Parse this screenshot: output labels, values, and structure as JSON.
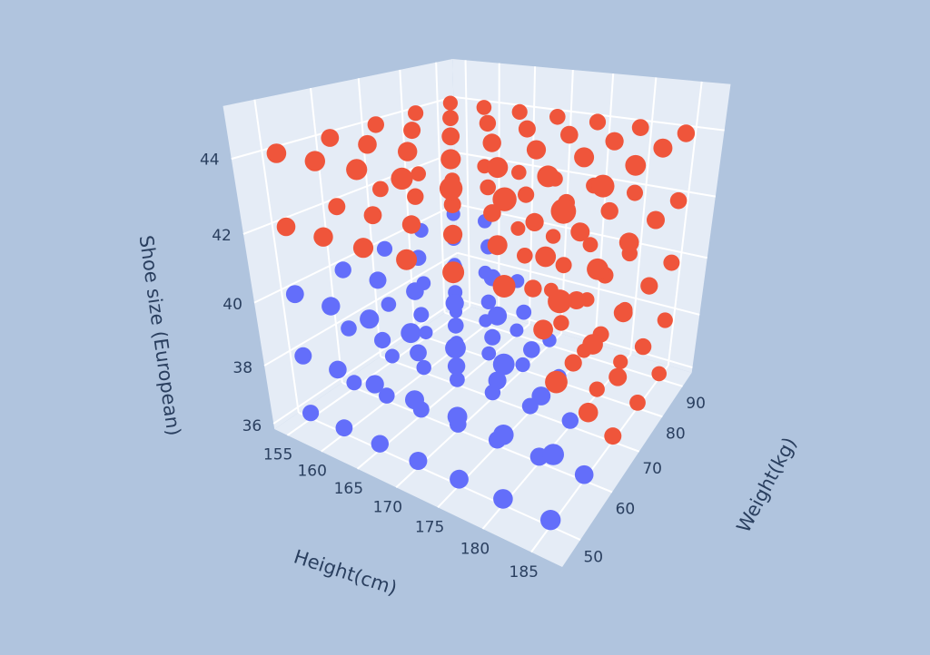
{
  "chart_data": {
    "type": "scatter3d",
    "x_label": "Height(cm)",
    "y_label": "Weight(kg)",
    "z_label": "Shoe size (European)",
    "xlim": [
      153,
      188
    ],
    "ylim": [
      45,
      95
    ],
    "zlim": [
      35.8,
      45.3
    ],
    "xticks": [
      155,
      160,
      165,
      170,
      175,
      180,
      185
    ],
    "yticks": [
      50,
      60,
      70,
      80,
      90
    ],
    "zticks": [
      36,
      38,
      40,
      42,
      44
    ],
    "series": [
      {
        "color": "#636efa",
        "x": [
          155,
          160,
          165,
          170,
          175,
          180,
          185,
          155,
          160,
          165,
          170,
          175,
          180,
          185,
          155,
          160,
          165,
          170,
          175,
          180,
          155,
          160,
          165,
          170,
          175,
          155,
          160,
          165,
          170,
          155,
          160,
          165,
          170,
          175,
          180,
          185,
          155,
          160,
          165,
          170,
          175,
          180,
          155,
          160,
          165,
          170,
          175,
          155,
          160,
          165,
          170,
          155,
          160,
          165,
          155,
          160,
          165,
          170,
          175,
          180,
          155,
          160,
          165,
          170,
          175,
          155,
          160,
          165,
          170,
          155,
          160,
          165,
          155,
          160
        ],
        "y": [
          50,
          50,
          50,
          50,
          50,
          50,
          50,
          60,
          60,
          60,
          60,
          60,
          60,
          60,
          70,
          70,
          70,
          70,
          70,
          70,
          80,
          80,
          80,
          80,
          80,
          90,
          90,
          90,
          90,
          50,
          50,
          50,
          50,
          50,
          50,
          50,
          60,
          60,
          60,
          60,
          60,
          60,
          70,
          70,
          70,
          70,
          70,
          80,
          80,
          80,
          80,
          90,
          90,
          90,
          50,
          50,
          50,
          50,
          50,
          50,
          60,
          60,
          60,
          60,
          60,
          70,
          70,
          70,
          70,
          80,
          80,
          80,
          90,
          90
        ],
        "z": [
          36,
          36,
          36,
          36,
          36,
          36,
          36,
          36,
          36,
          36,
          36,
          36,
          36,
          36,
          36,
          36,
          36,
          36,
          36,
          36,
          36,
          36,
          36,
          36,
          36,
          36,
          36,
          36,
          36,
          38,
          38,
          38,
          38,
          38,
          38,
          38,
          38,
          38,
          38,
          38,
          38,
          38,
          38,
          38,
          38,
          38,
          38,
          38,
          38,
          38,
          38,
          38,
          38,
          38,
          40,
          40,
          40,
          40,
          40,
          40,
          40,
          40,
          40,
          40,
          40,
          40,
          40,
          40,
          40,
          40,
          40,
          40,
          40,
          40
        ]
      },
      {
        "color": "#ef553b",
        "x": [
          185,
          180,
          185,
          175,
          180,
          185,
          185,
          180,
          185,
          175,
          180,
          185,
          170,
          175,
          180,
          185,
          185,
          180,
          185,
          175,
          180,
          185,
          170,
          175,
          180,
          185,
          165,
          170,
          175,
          180,
          185,
          155,
          160,
          165,
          170,
          175,
          180,
          185,
          155,
          160,
          165,
          170,
          175,
          180,
          185,
          155,
          160,
          165,
          170,
          175,
          180,
          185,
          155,
          160,
          165,
          170,
          175,
          180,
          185,
          155,
          160,
          165,
          170,
          175,
          180,
          185,
          155,
          160,
          165,
          170,
          175,
          180,
          185,
          155,
          160,
          165,
          170,
          175,
          180,
          185,
          155,
          160,
          165,
          170,
          175,
          180,
          185,
          155,
          160,
          165,
          170,
          175,
          180,
          185,
          155,
          160,
          165,
          170,
          175,
          180,
          185
        ],
        "y": [
          70,
          80,
          80,
          90,
          90,
          90,
          60,
          70,
          70,
          80,
          80,
          80,
          90,
          90,
          90,
          90,
          50,
          60,
          60,
          70,
          70,
          70,
          80,
          80,
          80,
          80,
          90,
          90,
          90,
          90,
          90,
          50,
          50,
          50,
          50,
          50,
          50,
          50,
          60,
          60,
          60,
          60,
          60,
          60,
          60,
          70,
          70,
          70,
          70,
          70,
          70,
          70,
          80,
          80,
          80,
          80,
          80,
          80,
          80,
          90,
          90,
          90,
          90,
          90,
          90,
          90,
          50,
          50,
          50,
          50,
          50,
          50,
          50,
          60,
          60,
          60,
          60,
          60,
          60,
          60,
          70,
          70,
          70,
          70,
          70,
          70,
          70,
          80,
          80,
          80,
          80,
          80,
          80,
          80,
          90,
          90,
          90,
          90,
          90,
          90,
          90
        ],
        "z": [
          36,
          36,
          36,
          36,
          36,
          36,
          38,
          38,
          38,
          38,
          38,
          38,
          38,
          38,
          38,
          38,
          40,
          40,
          40,
          40,
          40,
          40,
          40,
          40,
          40,
          40,
          40,
          40,
          40,
          40,
          40,
          42,
          42,
          42,
          42,
          42,
          42,
          42,
          42,
          42,
          42,
          42,
          42,
          42,
          42,
          42,
          42,
          42,
          42,
          42,
          42,
          42,
          42,
          42,
          42,
          42,
          42,
          42,
          42,
          42,
          42,
          42,
          42,
          42,
          42,
          42,
          44,
          44,
          44,
          44,
          44,
          44,
          44,
          44,
          44,
          44,
          44,
          44,
          44,
          44,
          44,
          44,
          44,
          44,
          44,
          44,
          44,
          44,
          44,
          44,
          44,
          44,
          44,
          44,
          44,
          44,
          44,
          44,
          44,
          44,
          44
        ]
      }
    ]
  }
}
